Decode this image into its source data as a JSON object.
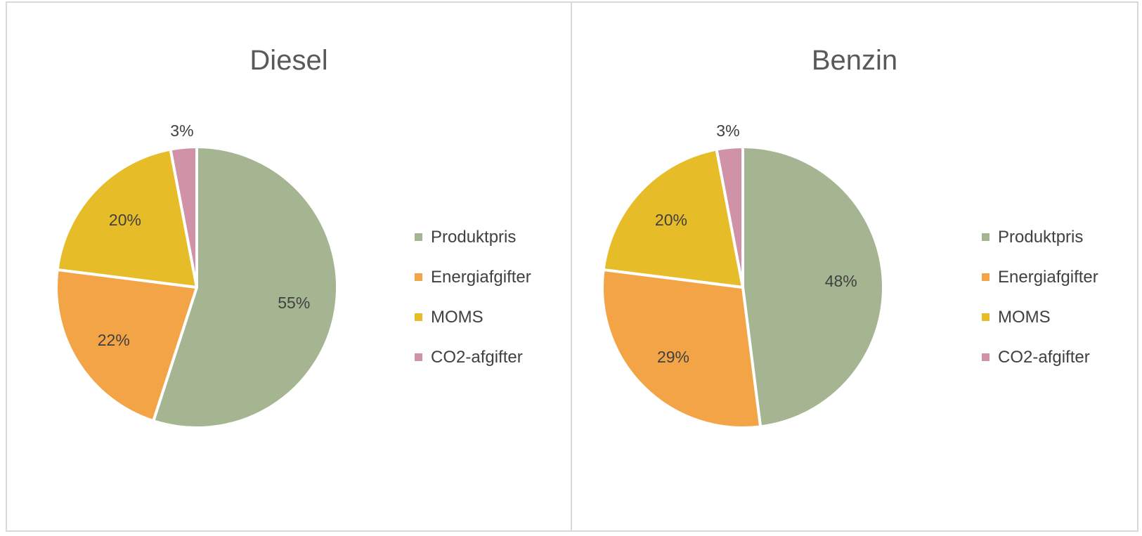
{
  "chart_data": [
    {
      "type": "pie",
      "title": "Diesel",
      "categories": [
        "Produktpris",
        "Energiafgifter",
        "MOMS",
        "CO2-afgifter"
      ],
      "values": [
        55,
        22,
        20,
        3
      ],
      "data_labels": [
        "55%",
        "22%",
        "20%",
        "3%"
      ],
      "colors": [
        "#a5b592",
        "#f3a447",
        "#e7bc29",
        "#d092a7"
      ],
      "legend": "right"
    },
    {
      "type": "pie",
      "title": "Benzin",
      "categories": [
        "Produktpris",
        "Energiafgifter",
        "MOMS",
        "CO2-afgifter"
      ],
      "values": [
        48,
        29,
        20,
        3
      ],
      "data_labels": [
        "48%",
        "29%",
        "20%",
        "3%"
      ],
      "colors": [
        "#a5b592",
        "#f3a447",
        "#e7bc29",
        "#d092a7"
      ],
      "legend": "right"
    }
  ]
}
